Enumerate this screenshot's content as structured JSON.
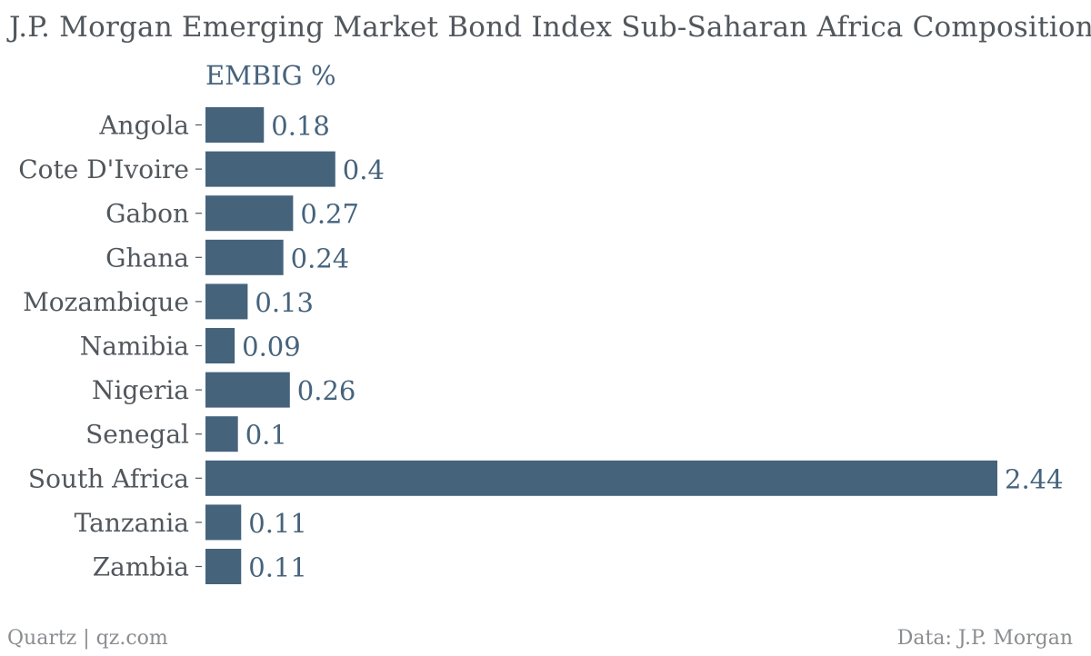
{
  "title": "J.P. Morgan Emerging Market Bond Index Sub-Saharan Africa Composition",
  "series_label": "EMBIG %",
  "footer": {
    "left": "Quartz | qz.com",
    "right": "Data: J.P. Morgan"
  },
  "colors": {
    "bar": "#46637c",
    "value_label": "#46637c",
    "category_label": "#51575d",
    "tick": "#51575d"
  },
  "chart_data": {
    "type": "bar",
    "orientation": "horizontal",
    "categories": [
      "Angola",
      "Cote D'Ivoire",
      "Gabon",
      "Ghana",
      "Mozambique",
      "Namibia",
      "Nigeria",
      "Senegal",
      "South Africa",
      "Tanzania",
      "Zambia"
    ],
    "series": [
      {
        "name": "EMBIG %",
        "values": [
          0.18,
          0.4,
          0.27,
          0.24,
          0.13,
          0.09,
          0.26,
          0.1,
          2.44,
          0.11,
          0.11
        ]
      }
    ],
    "value_labels": [
      "0.18",
      "0.4",
      "0.27",
      "0.24",
      "0.13",
      "0.09",
      "0.26",
      "0.1",
      "2.44",
      "0.11",
      "0.11"
    ],
    "xlim": [
      0,
      2.44
    ],
    "grid": false,
    "legend": "none"
  }
}
